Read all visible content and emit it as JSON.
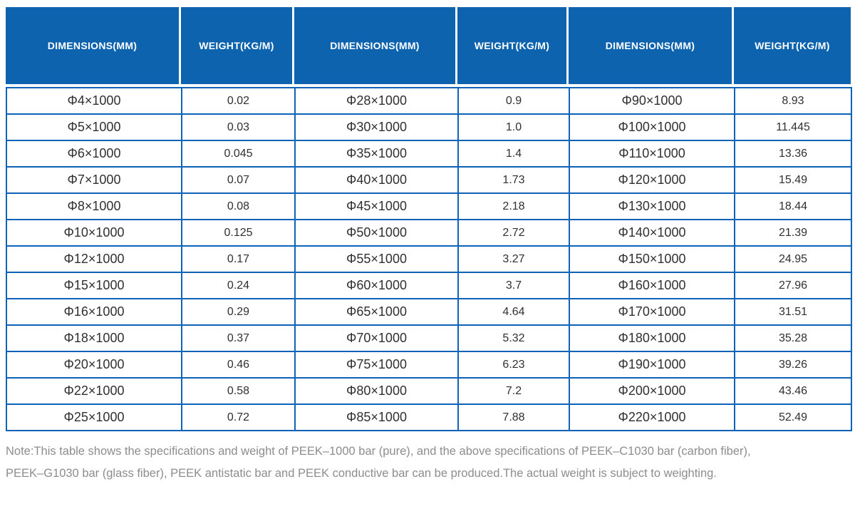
{
  "colors": {
    "header_bg": "#0d63ae",
    "table_border": "#0e62b8",
    "cell_text": "#303030",
    "note_text": "#8d8d8d",
    "header_text": "#ffffff"
  },
  "chart_data": {
    "type": "table",
    "columns": [
      "DIMENSIONS(MM)",
      "WEIGHT(KG/M)",
      "DIMENSIONS(MM)",
      "WEIGHT(KG/M)",
      "DIMENSIONS(MM)",
      "WEIGHT(KG/M)"
    ],
    "rows": [
      [
        "Φ4×1000",
        "0.02",
        "Φ28×1000",
        "0.9",
        "Φ90×1000",
        "8.93"
      ],
      [
        "Φ5×1000",
        "0.03",
        "Φ30×1000",
        "1.0",
        "Φ100×1000",
        "11.445"
      ],
      [
        "Φ6×1000",
        "0.045",
        "Φ35×1000",
        "1.4",
        "Φ110×1000",
        "13.36"
      ],
      [
        "Φ7×1000",
        "0.07",
        "Φ40×1000",
        "1.73",
        "Φ120×1000",
        "15.49"
      ],
      [
        "Φ8×1000",
        "0.08",
        "Φ45×1000",
        "2.18",
        "Φ130×1000",
        "18.44"
      ],
      [
        "Φ10×1000",
        "0.125",
        "Φ50×1000",
        "2.72",
        "Φ140×1000",
        "21.39"
      ],
      [
        "Φ12×1000",
        "0.17",
        "Φ55×1000",
        "3.27",
        "Φ150×1000",
        "24.95"
      ],
      [
        "Φ15×1000",
        "0.24",
        "Φ60×1000",
        "3.7",
        "Φ160×1000",
        "27.96"
      ],
      [
        "Φ16×1000",
        "0.29",
        "Φ65×1000",
        "4.64",
        "Φ170×1000",
        "31.51"
      ],
      [
        "Φ18×1000",
        "0.37",
        "Φ70×1000",
        "5.32",
        "Φ180×1000",
        "35.28"
      ],
      [
        "Φ20×1000",
        "0.46",
        "Φ75×1000",
        "6.23",
        "Φ190×1000",
        "39.26"
      ],
      [
        "Φ22×1000",
        "0.58",
        "Φ80×1000",
        "7.2",
        "Φ200×1000",
        "43.46"
      ],
      [
        "Φ25×1000",
        "0.72",
        "Φ85×1000",
        "7.88",
        "Φ220×1000",
        "52.49"
      ]
    ]
  },
  "note": {
    "line1": "Note:This table shows the specifications and weight of PEEK–1000 bar (pure), and the above specifications of PEEK–C1030 bar (carbon fiber),",
    "line2": "PEEK–G1030 bar (glass fiber), PEEK antistatic bar and PEEK conductive bar can be produced.The actual weight is subject to weighting."
  }
}
